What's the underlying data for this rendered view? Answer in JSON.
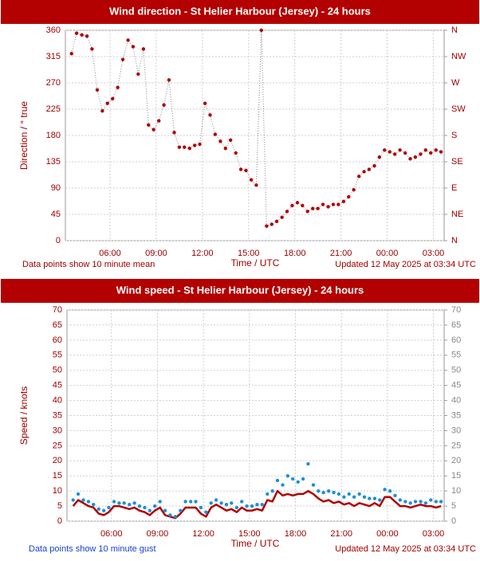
{
  "chart_data": [
    {
      "type": "line",
      "title": "Wind direction - St Helier Harbour (Jersey) - 24 hours",
      "xlabel": "Time / UTC",
      "ylabel": "Direction / ° true",
      "note": "Data points show 10 minute mean",
      "updated": "Updated 12 May 2025 at 03:34 UTC",
      "x": [
        3.5,
        3.83,
        4.17,
        4.5,
        4.83,
        5.17,
        5.5,
        5.83,
        6.17,
        6.5,
        6.83,
        7.17,
        7.5,
        7.83,
        8.17,
        8.5,
        8.83,
        9.17,
        9.5,
        9.83,
        10.17,
        10.5,
        10.83,
        11.17,
        11.5,
        11.83,
        12.17,
        12.5,
        12.83,
        13.17,
        13.5,
        13.83,
        14.17,
        14.5,
        14.83,
        15.17,
        15.5,
        15.83,
        16.17,
        16.5,
        16.83,
        17.17,
        17.5,
        17.83,
        18.17,
        18.5,
        18.83,
        19.17,
        19.5,
        19.83,
        20.17,
        20.5,
        20.83,
        21.17,
        21.5,
        21.83,
        22.17,
        22.5,
        22.83,
        23.17,
        23.5,
        23.83,
        24.17,
        24.5,
        24.83,
        25.17,
        25.5,
        25.83,
        26.17,
        26.5,
        26.83,
        27.17,
        27.5
      ],
      "series": [
        {
          "color": "#b00000",
          "line": "dotted",
          "markers": true,
          "values": [
            320,
            355,
            352,
            350,
            328,
            258,
            222,
            235,
            243,
            262,
            310,
            343,
            332,
            285,
            328,
            198,
            190,
            205,
            232,
            275,
            185,
            160,
            160,
            158,
            163,
            165,
            235,
            215,
            182,
            170,
            158,
            172,
            150,
            122,
            120,
            104,
            95,
            360,
            25,
            28,
            33,
            40,
            50,
            60,
            65,
            60,
            50,
            55,
            55,
            62,
            58,
            62,
            62,
            67,
            75,
            87,
            110,
            118,
            122,
            128,
            143,
            155,
            152,
            148,
            155,
            150,
            140,
            143,
            148,
            155,
            150,
            155,
            152
          ]
        }
      ],
      "xlim": [
        3.1,
        27.7
      ],
      "xticks": [
        {
          "value": 6,
          "label": "06:00"
        },
        {
          "value": 9,
          "label": "09:00"
        },
        {
          "value": 12,
          "label": "12:00"
        },
        {
          "value": 15,
          "label": "15:00"
        },
        {
          "value": 18,
          "label": "18:00"
        },
        {
          "value": 21,
          "label": "21:00"
        },
        {
          "value": 24,
          "label": "00:00"
        },
        {
          "value": 27,
          "label": "03:00"
        }
      ],
      "ylim": [
        0,
        360
      ],
      "yticks": [
        0,
        45,
        90,
        135,
        180,
        225,
        270,
        315,
        360
      ],
      "y2lim": [
        0,
        360
      ],
      "y2ticks": [
        {
          "value": 0,
          "label": "N"
        },
        {
          "value": 45,
          "label": "NE"
        },
        {
          "value": 90,
          "label": "E"
        },
        {
          "value": 135,
          "label": "SE"
        },
        {
          "value": 180,
          "label": "S"
        },
        {
          "value": 225,
          "label": "SW"
        },
        {
          "value": 270,
          "label": "W"
        },
        {
          "value": 315,
          "label": "NW"
        },
        {
          "value": 360,
          "label": "N"
        }
      ],
      "grid": true
    },
    {
      "type": "line",
      "title": "Wind speed - St Helier Harbour (Jersey) - 24 hours",
      "xlabel": "Time / UTC",
      "ylabel": "Speed / knots",
      "note": "Data points show 10 minute gust",
      "updated": "Updated 12 May 2025 at 03:34 UTC",
      "x": [
        3.5,
        3.83,
        4.17,
        4.5,
        4.83,
        5.17,
        5.5,
        5.83,
        6.17,
        6.5,
        6.83,
        7.17,
        7.5,
        7.83,
        8.17,
        8.5,
        8.83,
        9.17,
        9.5,
        9.83,
        10.17,
        10.5,
        10.83,
        11.17,
        11.5,
        11.83,
        12.17,
        12.5,
        12.83,
        13.17,
        13.5,
        13.83,
        14.17,
        14.5,
        14.83,
        15.17,
        15.5,
        15.83,
        16.17,
        16.5,
        16.83,
        17.17,
        17.5,
        17.83,
        18.17,
        18.5,
        18.83,
        19.17,
        19.5,
        19.83,
        20.17,
        20.5,
        20.83,
        21.17,
        21.5,
        21.83,
        22.17,
        22.5,
        22.83,
        23.17,
        23.5,
        23.83,
        24.17,
        24.5,
        24.83,
        25.17,
        25.5,
        25.83,
        26.17,
        26.5,
        26.83,
        27.17,
        27.5
      ],
      "series": [
        {
          "color": "#b00000",
          "line": "solid",
          "markers": false,
          "values": [
            5,
            7,
            6,
            5,
            4.5,
            2.5,
            2,
            3,
            5,
            5,
            4.5,
            4,
            4.5,
            3.5,
            3,
            2,
            3.5,
            4.5,
            2,
            1.5,
            1,
            2.5,
            4.5,
            4.5,
            4.5,
            2.5,
            1.5,
            4.5,
            5.5,
            4.5,
            3.5,
            4,
            3,
            4.5,
            3.5,
            3.5,
            4,
            3.5,
            7,
            6.5,
            10,
            8.5,
            9,
            8.5,
            9,
            9,
            10,
            9,
            7.5,
            6.5,
            7,
            6,
            6.5,
            5.5,
            6,
            5,
            6,
            5.5,
            5,
            6,
            5,
            8,
            8,
            6.5,
            5,
            5,
            4.5,
            5,
            5.5,
            5,
            5,
            4.5,
            5
          ]
        },
        {
          "color": "#1f8fd6",
          "markers": true,
          "values": [
            7,
            9,
            7,
            6.5,
            5.5,
            4,
            3.5,
            4.5,
            6.5,
            6,
            6,
            5.5,
            6,
            5,
            4.5,
            3.5,
            5,
            6.5,
            3.5,
            2,
            1.5,
            3.5,
            6.5,
            6.5,
            6.5,
            4.5,
            3,
            6,
            7,
            6,
            5.5,
            6,
            4.5,
            6.5,
            5,
            5,
            5.5,
            5.5,
            9,
            10,
            13.5,
            12,
            15,
            14,
            13,
            14,
            19,
            12,
            10,
            9.5,
            10,
            9.5,
            9,
            8,
            9,
            8,
            9,
            8,
            7.5,
            7.5,
            7,
            10.5,
            10,
            8.5,
            7,
            6.5,
            6,
            6.5,
            6.5,
            6,
            7,
            6.5,
            6.5
          ]
        }
      ],
      "xlim": [
        3.1,
        27.7
      ],
      "xticks": [
        {
          "value": 6,
          "label": "06:00"
        },
        {
          "value": 9,
          "label": "09:00"
        },
        {
          "value": 12,
          "label": "12:00"
        },
        {
          "value": 15,
          "label": "15:00"
        },
        {
          "value": 18,
          "label": "18:00"
        },
        {
          "value": 21,
          "label": "21:00"
        },
        {
          "value": 24,
          "label": "00:00"
        },
        {
          "value": 27,
          "label": "03:00"
        }
      ],
      "ylim": [
        0,
        70
      ],
      "yticks": [
        0,
        5,
        10,
        15,
        20,
        25,
        30,
        35,
        40,
        45,
        50,
        55,
        60,
        65,
        70
      ],
      "y2lim": [
        0,
        70
      ],
      "y2ticks": [
        0,
        5,
        10,
        15,
        20,
        25,
        30,
        35,
        40,
        45,
        50,
        55,
        60,
        65,
        70
      ],
      "grid": true
    }
  ]
}
